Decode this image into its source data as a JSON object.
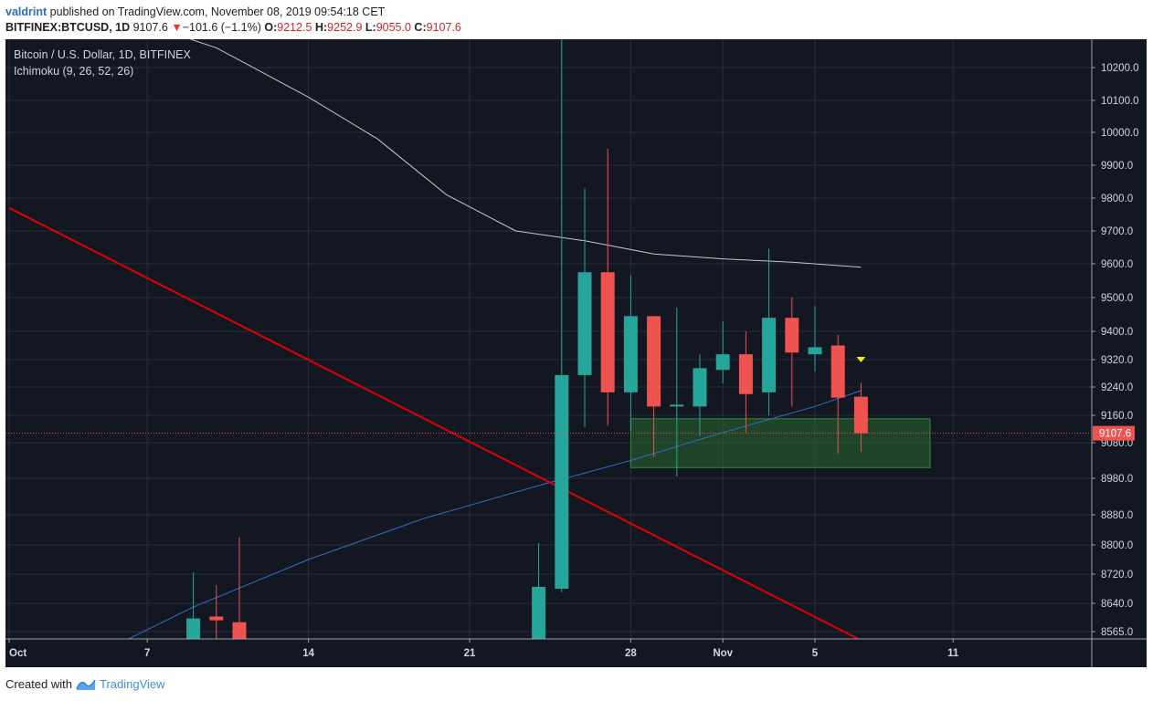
{
  "header": {
    "author": "valdrint",
    "published_text": "published on TradingView.com, November 08, 2019 09:54:18 CET",
    "symbol": "BITFINEX:BTCUSD, 1D",
    "last": "9107.6",
    "change_arrow": "▼",
    "change": "−101.6 (−1.1%)",
    "o_label": "O:",
    "o_value": "9212.5",
    "h_label": "H:",
    "h_value": "9252.9",
    "l_label": "L:",
    "l_value": "9055.0",
    "c_label": "C:",
    "c_value": "9107.6"
  },
  "legend": {
    "title": "Bitcoin / U.S. Dollar, 1D, BITFINEX",
    "indicator": "Ichimoku (9, 26, 52, 26)"
  },
  "footer": {
    "created_with": "Created with",
    "brand": "TradingView"
  },
  "colors": {
    "background": "#131722",
    "grid": "#2a2e39",
    "up": "#26a69a",
    "down": "#ef5350",
    "trendline": "#e00000",
    "lagging_span": "#2f6fc1",
    "cloud_line": "#c8c8c8",
    "support_zone": "#1f5c2a",
    "last_price": "#ef5350",
    "marker": "#f5e50c"
  },
  "chart_data": {
    "type": "candlestick",
    "title": "Bitcoin / U.S. Dollar, 1D, BITFINEX",
    "x_tick_labels": [
      {
        "date": "2019-10-01",
        "label": "Oct"
      },
      {
        "date": "2019-10-07",
        "label": "7"
      },
      {
        "date": "2019-10-14",
        "label": "14"
      },
      {
        "date": "2019-10-21",
        "label": "21"
      },
      {
        "date": "2019-10-28",
        "label": "28"
      },
      {
        "date": "2019-11-01",
        "label": "Nov"
      },
      {
        "date": "2019-11-05",
        "label": "5"
      },
      {
        "date": "2019-11-11",
        "label": "11"
      }
    ],
    "y_tick_labels": [
      "10200.0",
      "10100.0",
      "10000.0",
      "9900.0",
      "9800.0",
      "9700.0",
      "9600.0",
      "9500.0",
      "9400.0",
      "9320.0",
      "9240.0",
      "9160.0",
      "9080.0",
      "8980.0",
      "8880.0",
      "8800.0",
      "8720.0",
      "8640.0",
      "8565.0"
    ],
    "last_price": 9107.6,
    "last_price_label": "9107.6",
    "candles": [
      {
        "date": "2019-10-09",
        "open": 8500.0,
        "high": 8725.0,
        "low": 8480.0,
        "close": 8600.0
      },
      {
        "date": "2019-10-10",
        "open": 8605.0,
        "high": 8690.0,
        "low": 8480.0,
        "close": 8595.0
      },
      {
        "date": "2019-10-11",
        "open": 8590.0,
        "high": 8820.0,
        "low": 8480.0,
        "close": 8500.0
      },
      {
        "date": "2019-10-24",
        "open": 8500.0,
        "high": 8805.0,
        "low": 8480.0,
        "close": 8685.0
      },
      {
        "date": "2019-10-25",
        "open": 8680.0,
        "high": 10500.0,
        "low": 8670.0,
        "close": 9275.0
      },
      {
        "date": "2019-10-26",
        "open": 9275.0,
        "high": 9830.0,
        "low": 9125.0,
        "close": 9575.0
      },
      {
        "date": "2019-10-27",
        "open": 9575.0,
        "high": 9950.0,
        "low": 9130.0,
        "close": 9225.0
      },
      {
        "date": "2019-10-28",
        "open": 9225.0,
        "high": 9565.0,
        "low": 9115.0,
        "close": 9445.0
      },
      {
        "date": "2019-10-29",
        "open": 9445.0,
        "high": 9445.0,
        "low": 9040.0,
        "close": 9185.0
      },
      {
        "date": "2019-10-30",
        "open": 9190.0,
        "high": 9470.0,
        "low": 8985.0,
        "close": 9190.0
      },
      {
        "date": "2019-10-31",
        "open": 9185.0,
        "high": 9335.0,
        "low": 9100.0,
        "close": 9295.0
      },
      {
        "date": "2019-11-01",
        "open": 9290.0,
        "high": 9430.0,
        "low": 9250.0,
        "close": 9335.0
      },
      {
        "date": "2019-11-02",
        "open": 9335.0,
        "high": 9400.0,
        "low": 9110.0,
        "close": 9220.0
      },
      {
        "date": "2019-11-03",
        "open": 9225.0,
        "high": 9645.0,
        "low": 9160.0,
        "close": 9440.0
      },
      {
        "date": "2019-11-04",
        "open": 9440.0,
        "high": 9500.0,
        "low": 9185.0,
        "close": 9340.0
      },
      {
        "date": "2019-11-05",
        "open": 9335.0,
        "high": 9475.0,
        "low": 9285.0,
        "close": 9355.0
      },
      {
        "date": "2019-11-06",
        "open": 9360.0,
        "high": 9390.0,
        "low": 9050.0,
        "close": 9210.0
      },
      {
        "date": "2019-11-07",
        "open": 9212.5,
        "high": 9252.9,
        "low": 9055.0,
        "close": 9107.6
      }
    ],
    "cloud_line": [
      {
        "date": "2019-10-07",
        "value": 10330
      },
      {
        "date": "2019-10-10",
        "value": 10260
      },
      {
        "date": "2019-10-14",
        "value": 10110
      },
      {
        "date": "2019-10-17",
        "value": 9980
      },
      {
        "date": "2019-10-20",
        "value": 9810
      },
      {
        "date": "2019-10-23",
        "value": 9700
      },
      {
        "date": "2019-10-26",
        "value": 9670
      },
      {
        "date": "2019-10-29",
        "value": 9630
      },
      {
        "date": "2019-11-01",
        "value": 9615
      },
      {
        "date": "2019-11-04",
        "value": 9605
      },
      {
        "date": "2019-11-07",
        "value": 9590
      }
    ],
    "lagging_span": [
      {
        "date": "2019-10-04",
        "value": 8480
      },
      {
        "date": "2019-10-09",
        "value": 8630
      },
      {
        "date": "2019-10-14",
        "value": 8760
      },
      {
        "date": "2019-10-19",
        "value": 8870
      },
      {
        "date": "2019-10-24",
        "value": 8960
      },
      {
        "date": "2019-10-28",
        "value": 9030
      },
      {
        "date": "2019-11-01",
        "value": 9110
      },
      {
        "date": "2019-11-05",
        "value": 9185
      },
      {
        "date": "2019-11-07",
        "value": 9230
      }
    ],
    "trendline": [
      {
        "date": "2019-10-01",
        "value": 9770
      },
      {
        "date": "2019-11-09",
        "value": 8480
      }
    ],
    "support_zone": {
      "date_start": "2019-10-28",
      "date_end": "2019-11-10",
      "low": 9010,
      "high": 9150
    },
    "marker": {
      "date": "2019-11-07",
      "value": 9320,
      "shape": "down-triangle"
    }
  }
}
